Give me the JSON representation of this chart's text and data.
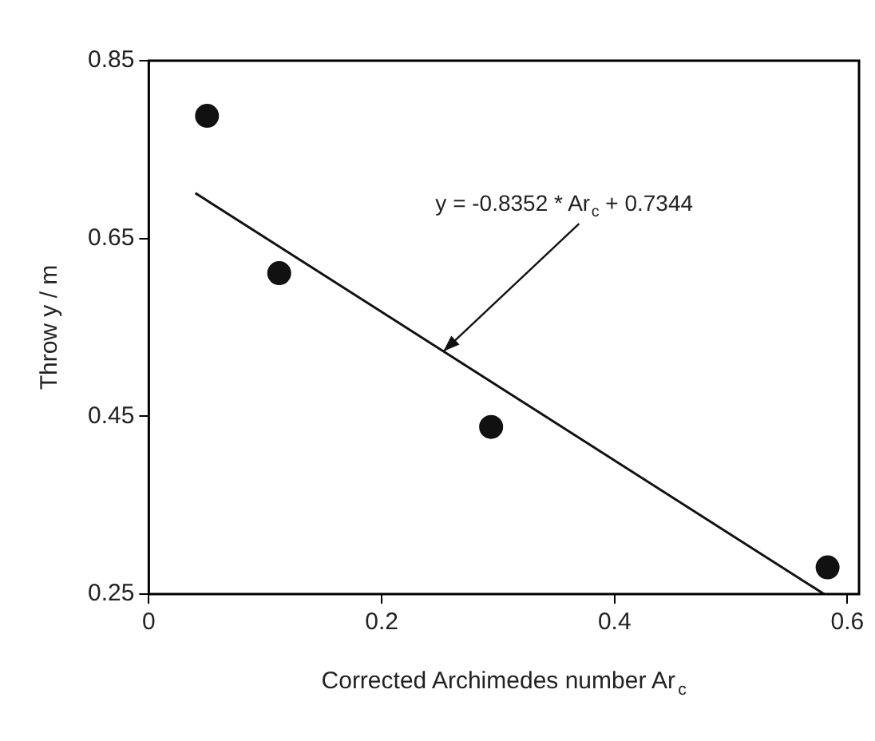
{
  "chart_data": {
    "type": "scatter",
    "xlabel": "Corrected Archimedes number Ar$_{c}$",
    "ylabel": "Throw y / m",
    "xlim": [
      0,
      0.61
    ],
    "xticks": [
      0,
      0.2,
      0.4,
      0.6
    ],
    "ylim": [
      0.25,
      0.85
    ],
    "yticks": [
      0.25,
      0.45,
      0.65,
      0.85
    ],
    "grid": false,
    "legend": false,
    "marker": "circle",
    "series": [
      {
        "color": "#111111",
        "x": [
          0.05,
          0.112,
          0.294,
          0.583
        ],
        "values": [
          0.788,
          0.611,
          0.438,
          0.28
        ]
      },
      {
        "type": "line",
        "color": "#111111",
        "x": [
          0.04,
          0.58
        ],
        "values": [
          0.701,
          0.25
        ],
        "marker": "none",
        "line_style": "solid"
      }
    ],
    "annotations": [
      {
        "text": "y = -0.8352 * Ar$_{c}$ + 0.7344",
        "x": 0.253,
        "y": 0.523
      }
    ]
  }
}
